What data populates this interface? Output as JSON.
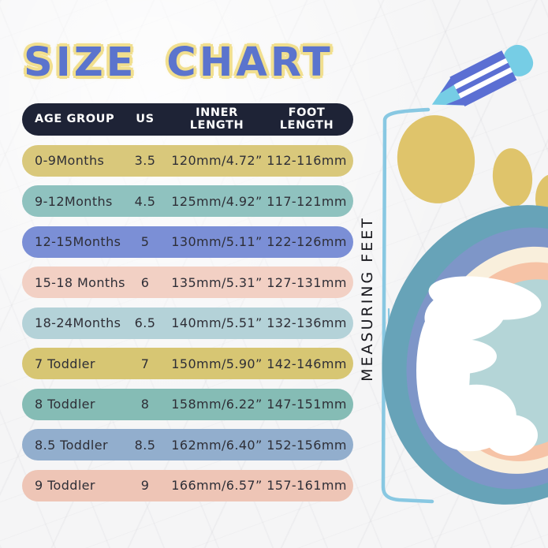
{
  "title": "SIZE CHART",
  "table": {
    "columns": [
      {
        "label": "AGE GROUP"
      },
      {
        "label": "US"
      },
      {
        "label": "INNER\nLENGTH"
      },
      {
        "label": "FOOT\nLENGTH"
      }
    ],
    "rows": [
      {
        "age_group": "0-9Months",
        "us": "3.5",
        "inner_length": "120mm/4.72”",
        "foot_length": "112-116mm",
        "color": "#d9c87b"
      },
      {
        "age_group": "9-12Months",
        "us": "4.5",
        "inner_length": "125mm/4.92”",
        "foot_length": "117-121mm",
        "color": "#8fc2bf"
      },
      {
        "age_group": "12-15Months",
        "us": "5",
        "inner_length": "130mm/5.11”",
        "foot_length": "122-126mm",
        "color": "#7b8fd6"
      },
      {
        "age_group": "15-18 Months",
        "us": "6",
        "inner_length": "135mm/5.31”",
        "foot_length": "127-131mm",
        "color": "#f2d0c4"
      },
      {
        "age_group": "18-24Months",
        "us": "6.5",
        "inner_length": "140mm/5.51”",
        "foot_length": "132-136mm",
        "color": "#b4d2d8"
      },
      {
        "age_group": "7 Toddler",
        "us": "7",
        "inner_length": "150mm/5.90”",
        "foot_length": "142-146mm",
        "color": "#d7c673"
      },
      {
        "age_group": "8 Toddler",
        "us": "8",
        "inner_length": "158mm/6.22”",
        "foot_length": "147-151mm",
        "color": "#85bcb5"
      },
      {
        "age_group": "8.5 Toddler",
        "us": "8.5",
        "inner_length": "162mm/6.40”",
        "foot_length": "152-156mm",
        "color": "#92aecd"
      },
      {
        "age_group": "9 Toddler",
        "us": "9",
        "inner_length": "166mm/6.57”",
        "foot_length": "157-161mm",
        "color": "#eec5b6"
      }
    ]
  },
  "side": {
    "measuring_label": "MEASURING FEET"
  },
  "colors": {
    "title_text": "#5b74cd",
    "title_glow": "#f1df8e",
    "header_bg": "#1e2336",
    "header_text": "#ffffff",
    "row_text": "#2e2e36",
    "pencil_body": "#5b6fd3",
    "pencil_tip": "#76cde5",
    "toe": "#dfc46b",
    "foot_outer": "#67a3b8",
    "foot_ring2": "#7e96c8",
    "foot_ring3": "#f9efdc",
    "foot_ring4": "#f6c3a6",
    "foot_center": "#b4d5d7",
    "foot_blob": "#ffffff",
    "bracket": "#88c8e2"
  },
  "chart_data": {
    "type": "table",
    "title": "SIZE CHART",
    "columns": [
      "AGE GROUP",
      "US",
      "INNER LENGTH",
      "FOOT LENGTH"
    ],
    "rows": [
      [
        "0-9Months",
        "3.5",
        "120mm/4.72”",
        "112-116mm"
      ],
      [
        "9-12Months",
        "4.5",
        "125mm/4.92”",
        "117-121mm"
      ],
      [
        "12-15Months",
        "5",
        "130mm/5.11”",
        "122-126mm"
      ],
      [
        "15-18 Months",
        "6",
        "135mm/5.31”",
        "127-131mm"
      ],
      [
        "18-24Months",
        "6.5",
        "140mm/5.51”",
        "132-136mm"
      ],
      [
        "7 Toddler",
        "7",
        "150mm/5.90”",
        "142-146mm"
      ],
      [
        "8 Toddler",
        "8",
        "158mm/6.22”",
        "147-151mm"
      ],
      [
        "8.5 Toddler",
        "8.5",
        "162mm/6.40”",
        "152-156mm"
      ],
      [
        "9 Toddler",
        "9",
        "166mm/6.57”",
        "157-161mm"
      ]
    ]
  }
}
